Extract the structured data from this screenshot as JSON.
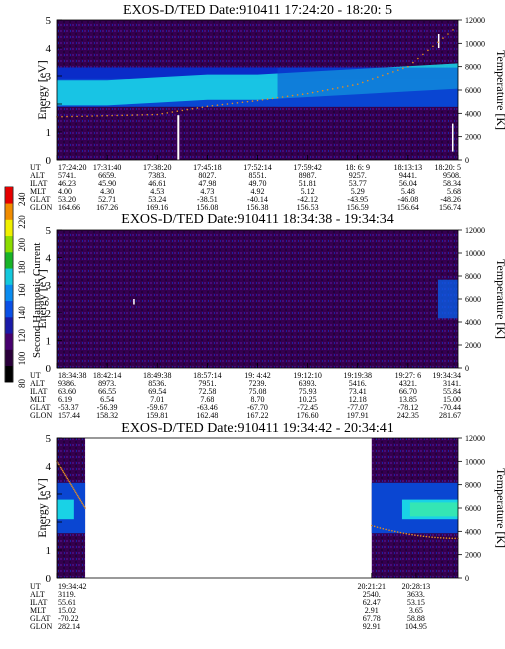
{
  "colorbar": {
    "label": "Second Harmonic Current",
    "ticks": [
      "240",
      "220",
      "200",
      "180",
      "160",
      "140",
      "120",
      "100",
      "80"
    ],
    "colors": [
      "#000000",
      "#2a003a",
      "#46006e",
      "#1a1aa8",
      "#0a50e6",
      "#0a8cf0",
      "#14c8dc",
      "#18b428",
      "#8cdc00",
      "#f0f000",
      "#f08c00",
      "#e60000"
    ]
  },
  "row_labels": [
    "UT",
    "ALT",
    "ILAT",
    "MLT",
    "GLAT",
    "GLON"
  ],
  "colors": {
    "background": "#000000",
    "band_cyan": "#19d2e6",
    "band_blue": "#0a46d2",
    "trace": "#e68c1e"
  },
  "chart_data": [
    {
      "type": "heatmap",
      "title": "EXOS-D/TED   Date:910411  17:24:20 - 18:20: 5",
      "ylabel": "Energy [eV]",
      "y2label": "Temperature [K]",
      "ylim": [
        0,
        5
      ],
      "y2lim": [
        0,
        12000
      ],
      "yticks": [
        "0",
        "1",
        "2",
        "3",
        "4",
        "5"
      ],
      "y2ticks": [
        "0",
        "2000",
        "4000",
        "6000",
        "8000",
        "10000",
        "12000"
      ],
      "columns": [
        [
          "17:24:20",
          "5741.",
          "46.23",
          "4.00",
          "53.20",
          "164.66"
        ],
        [
          "17:31:40",
          "6659.",
          "45.90",
          "4.30",
          "52.71",
          "167.26"
        ],
        [
          "17:38:20",
          "7383.",
          "46.61",
          "4.53",
          "53.24",
          "169.16"
        ],
        [
          "17:45:18",
          "8027.",
          "47.98",
          "4.73",
          "-38.51",
          "156.08"
        ],
        [
          "17:52:14",
          "8551.",
          "49.70",
          "4.92",
          "-40.14",
          "156.38"
        ],
        [
          "17:59:42",
          "8987.",
          "51.81",
          "5.12",
          "-42.12",
          "156.53"
        ],
        [
          "18: 6: 9",
          "9257.",
          "53.77",
          "5.29",
          "-43.95",
          "156.59"
        ],
        [
          "18:13:13",
          "9441.",
          "56.04",
          "5.48",
          "-46.08",
          "156.64"
        ],
        [
          "18:20: 5",
          "9508.",
          "58.34",
          "5.68",
          "-48.26",
          "156.74"
        ]
      ],
      "band_energy": [
        2.4,
        2.4,
        2.5,
        2.6,
        2.6,
        2.7,
        2.8,
        2.9,
        3.0
      ],
      "temperature_trace": [
        3700,
        3800,
        3900,
        4600,
        5100,
        5700,
        6500,
        8000,
        11500
      ]
    },
    {
      "type": "heatmap",
      "title": "EXOS-D/TED   Date:910411  18:34:38 - 19:34:34",
      "ylabel": "Energy [eV]",
      "y2label": "Temperature [K]",
      "ylim": [
        0,
        5
      ],
      "y2lim": [
        0,
        12000
      ],
      "yticks": [
        "0",
        "1",
        "2",
        "3",
        "4",
        "5"
      ],
      "y2ticks": [
        "0",
        "2000",
        "4000",
        "6000",
        "8000",
        "10000",
        "12000"
      ],
      "columns": [
        [
          "18:34:38",
          "9386.",
          "63.60",
          "6.19",
          "-53.37",
          "157.44"
        ],
        [
          "18:42:14",
          "8973.",
          "66.55",
          "6.54",
          "-56.39",
          "158.32"
        ],
        [
          "18:49:38",
          "8536.",
          "69.54",
          "7.01",
          "-59.67",
          "159.81"
        ],
        [
          "18:57:14",
          "7951.",
          "72.58",
          "7.68",
          "-63.46",
          "162.48"
        ],
        [
          "19: 4:42",
          "7239.",
          "75.08",
          "8.70",
          "-67.70",
          "167.22"
        ],
        [
          "19:12:10",
          "6393.",
          "75.93",
          "10.25",
          "-72.45",
          "176.60"
        ],
        [
          "19:19:38",
          "5416.",
          "73.41",
          "12.18",
          "-77.07",
          "197.91"
        ],
        [
          "19:27: 6",
          "4321.",
          "66.70",
          "13.85",
          "-78.12",
          "242.35"
        ],
        [
          "19:34:34",
          "3141.",
          "55.84",
          "15.00",
          "-70.44",
          "281.67"
        ]
      ]
    },
    {
      "type": "heatmap",
      "title": "EXOS-D/TED   Date:910411  19:34:42 - 20:34:41",
      "ylabel": "Energy [eV]",
      "y2label": "Temperature [K]",
      "ylim": [
        0,
        5
      ],
      "y2lim": [
        0,
        12000
      ],
      "yticks": [
        "0",
        "1",
        "2",
        "3",
        "4",
        "5"
      ],
      "y2ticks": [
        "0",
        "2000",
        "4000",
        "6000",
        "8000",
        "10000",
        "12000"
      ],
      "columns": [
        [
          "19:34:42",
          "3119.",
          "55.61",
          "15.02",
          "-70.22",
          "282.14"
        ],
        [
          "20:21:21",
          "2540.",
          "62.47",
          "2.91",
          "67.78",
          "92.91"
        ],
        [
          "20:28:13",
          "3633.",
          "53.15",
          "3.65",
          "58.88",
          "104.95"
        ]
      ],
      "band_energy": [
        2.6,
        2.8,
        2.5
      ],
      "temperature_trace": [
        10000,
        4500,
        3400
      ]
    }
  ]
}
